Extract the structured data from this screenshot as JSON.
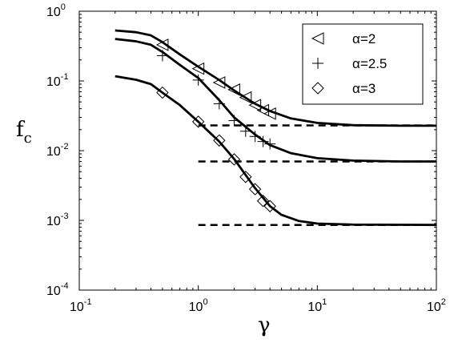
{
  "chart_data": {
    "type": "line",
    "xscale": "log",
    "yscale": "log",
    "xlim": [
      0.1,
      100
    ],
    "ylim": [
      0.0001,
      1
    ],
    "xlabel": "γ",
    "ylabel_main": "f",
    "ylabel_sub": "c",
    "xticks": [
      {
        "value": 0.1,
        "base": "10",
        "exp": "-1"
      },
      {
        "value": 1,
        "base": "10",
        "exp": "0"
      },
      {
        "value": 10,
        "base": "10",
        "exp": "1"
      },
      {
        "value": 100,
        "base": "10",
        "exp": "2"
      }
    ],
    "yticks": [
      {
        "value": 0.0001,
        "base": "10",
        "exp": "-4"
      },
      {
        "value": 0.001,
        "base": "10",
        "exp": "-3"
      },
      {
        "value": 0.01,
        "base": "10",
        "exp": "-2"
      },
      {
        "value": 0.1,
        "base": "10",
        "exp": "-1"
      },
      {
        "value": 1,
        "base": "10",
        "exp": "0"
      }
    ],
    "grid": false,
    "legend_position": "top-right",
    "series": [
      {
        "name": "α=2",
        "marker": "triangle-left",
        "points": [
          [
            0.5,
            0.33
          ],
          [
            1.0,
            0.15
          ],
          [
            1.5,
            0.095
          ],
          [
            2.0,
            0.075
          ],
          [
            2.5,
            0.058
          ],
          [
            3.0,
            0.045
          ],
          [
            3.5,
            0.038
          ],
          [
            4.0,
            0.034
          ]
        ]
      },
      {
        "name": "α=2.5",
        "marker": "plus",
        "points": [
          [
            0.5,
            0.23
          ],
          [
            1.0,
            0.103
          ],
          [
            1.5,
            0.047
          ],
          [
            2.0,
            0.027
          ],
          [
            2.5,
            0.019
          ],
          [
            3.0,
            0.016
          ],
          [
            3.5,
            0.0135
          ],
          [
            4.0,
            0.0125
          ]
        ]
      },
      {
        "name": "α=3",
        "marker": "diamond",
        "points": [
          [
            0.5,
            0.068
          ],
          [
            1.0,
            0.026
          ],
          [
            1.5,
            0.014
          ],
          [
            2.0,
            0.0075
          ],
          [
            2.5,
            0.0042
          ],
          [
            3.0,
            0.0028
          ],
          [
            3.5,
            0.0019
          ],
          [
            4.0,
            0.0016
          ]
        ]
      }
    ],
    "fit_curves": [
      {
        "points": [
          [
            0.2,
            0.53
          ],
          [
            0.3,
            0.5
          ],
          [
            0.4,
            0.45
          ],
          [
            0.5,
            0.36
          ],
          [
            0.7,
            0.24
          ],
          [
            1.0,
            0.16
          ],
          [
            1.5,
            0.103
          ],
          [
            2.0,
            0.073
          ],
          [
            3.0,
            0.047
          ],
          [
            4.0,
            0.037
          ],
          [
            6.0,
            0.029
          ],
          [
            10,
            0.025
          ],
          [
            20,
            0.0232
          ],
          [
            50,
            0.0228
          ],
          [
            100,
            0.0228
          ]
        ]
      },
      {
        "points": [
          [
            0.2,
            0.4
          ],
          [
            0.3,
            0.37
          ],
          [
            0.4,
            0.33
          ],
          [
            0.5,
            0.26
          ],
          [
            0.7,
            0.17
          ],
          [
            1.0,
            0.11
          ],
          [
            1.5,
            0.053
          ],
          [
            2.0,
            0.03
          ],
          [
            3.0,
            0.017
          ],
          [
            4.0,
            0.012
          ],
          [
            6.0,
            0.0092
          ],
          [
            10,
            0.0078
          ],
          [
            20,
            0.0072
          ],
          [
            50,
            0.007
          ],
          [
            100,
            0.007
          ]
        ]
      },
      {
        "points": [
          [
            0.2,
            0.117
          ],
          [
            0.3,
            0.104
          ],
          [
            0.4,
            0.09
          ],
          [
            0.5,
            0.068
          ],
          [
            0.7,
            0.045
          ],
          [
            1.0,
            0.026
          ],
          [
            1.5,
            0.0135
          ],
          [
            2.0,
            0.0076
          ],
          [
            3.0,
            0.0029
          ],
          [
            4.0,
            0.0016
          ],
          [
            5.0,
            0.0012
          ],
          [
            7.0,
            0.00098
          ],
          [
            10,
            0.0009
          ],
          [
            20,
            0.00087
          ],
          [
            50,
            0.000865
          ],
          [
            100,
            0.00086
          ]
        ]
      }
    ],
    "asymptotes": [
      {
        "value": 0.023,
        "x_start": 1.0,
        "x_end": 100
      },
      {
        "value": 0.007,
        "x_start": 1.0,
        "x_end": 100
      },
      {
        "value": 0.00086,
        "x_start": 1.0,
        "x_end": 100
      }
    ]
  }
}
